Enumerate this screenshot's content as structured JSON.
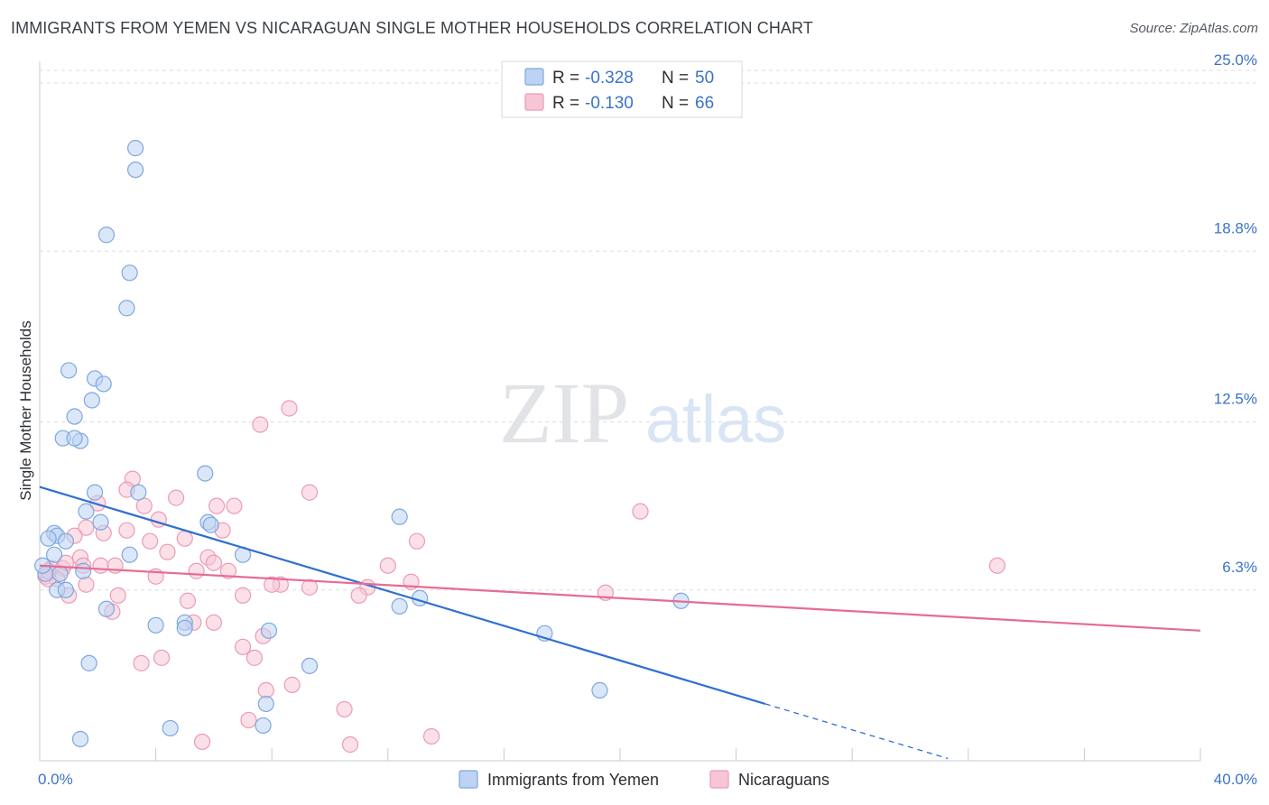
{
  "header": {
    "title": "IMMIGRANTS FROM YEMEN VS NICARAGUAN SINGLE MOTHER HOUSEHOLDS CORRELATION CHART",
    "source": "Source: ZipAtlas.com"
  },
  "watermark": {
    "zip": "ZIP",
    "atlas": "atlas"
  },
  "colors": {
    "blue_fill": "#bcd3f3",
    "blue_stroke": "#7fa7de",
    "blue_line": "#2f6fd1",
    "pink_fill": "#f7c6d6",
    "pink_stroke": "#eb9bb6",
    "pink_line": "#e66b95",
    "grid": "#d9dde3",
    "tick_text": "#3b73c9"
  },
  "legend": {
    "rows": [
      {
        "r_label": "R =",
        "r_value": "-0.328",
        "n_label": "N =",
        "n_value": "50"
      },
      {
        "r_label": "R =",
        "r_value": "-0.130",
        "n_label": "N =",
        "n_value": "66"
      }
    ]
  },
  "chart_data": {
    "type": "scatter",
    "title": "IMMIGRANTS FROM YEMEN VS NICARAGUAN SINGLE MOTHER HOUSEHOLDS CORRELATION CHART",
    "xlabel": "",
    "ylabel": "Single Mother Households",
    "xlim": [
      0,
      40
    ],
    "ylim": [
      0,
      25.8
    ],
    "x_tick_labels": [
      "0.0%",
      "40.0%"
    ],
    "y_ticks": [
      {
        "value": 6.3,
        "label": "6.3%"
      },
      {
        "value": 12.5,
        "label": "12.5%"
      },
      {
        "value": 18.8,
        "label": "18.8%"
      },
      {
        "value": 25.0,
        "label": "25.0%"
      }
    ],
    "series": [
      {
        "name": "Immigrants from Yemen",
        "color": "#bcd3f3",
        "r": -0.328,
        "n": 50,
        "trend": {
          "x0": 0,
          "y0": 10.1,
          "x1": 25,
          "y1": 2.1,
          "dash_to_x": 31.3
        },
        "points": [
          [
            3.3,
            22.6
          ],
          [
            3.3,
            21.8
          ],
          [
            2.3,
            19.4
          ],
          [
            3.1,
            18.0
          ],
          [
            3.0,
            16.7
          ],
          [
            1.0,
            14.4
          ],
          [
            1.9,
            14.1
          ],
          [
            2.2,
            13.9
          ],
          [
            1.8,
            13.3
          ],
          [
            1.2,
            12.7
          ],
          [
            0.8,
            11.9
          ],
          [
            1.4,
            11.8
          ],
          [
            1.2,
            11.9
          ],
          [
            5.7,
            10.6
          ],
          [
            1.9,
            9.9
          ],
          [
            3.4,
            9.9
          ],
          [
            1.6,
            9.2
          ],
          [
            2.1,
            8.8
          ],
          [
            5.8,
            8.8
          ],
          [
            5.9,
            8.7
          ],
          [
            12.4,
            9.0
          ],
          [
            0.5,
            8.4
          ],
          [
            0.6,
            8.3
          ],
          [
            0.3,
            8.2
          ],
          [
            0.9,
            8.1
          ],
          [
            0.5,
            7.6
          ],
          [
            3.1,
            7.6
          ],
          [
            7.0,
            7.6
          ],
          [
            0.2,
            6.9
          ],
          [
            0.7,
            6.9
          ],
          [
            1.5,
            7.0
          ],
          [
            0.6,
            6.3
          ],
          [
            0.9,
            6.3
          ],
          [
            13.1,
            6.0
          ],
          [
            12.4,
            5.7
          ],
          [
            22.1,
            5.9
          ],
          [
            2.3,
            5.6
          ],
          [
            4.0,
            5.0
          ],
          [
            5.0,
            5.1
          ],
          [
            5.0,
            4.9
          ],
          [
            7.9,
            4.8
          ],
          [
            17.4,
            4.7
          ],
          [
            1.7,
            3.6
          ],
          [
            9.3,
            3.5
          ],
          [
            19.3,
            2.6
          ],
          [
            7.8,
            2.1
          ],
          [
            4.5,
            1.2
          ],
          [
            7.7,
            1.3
          ],
          [
            1.4,
            0.8
          ],
          [
            0.1,
            7.2
          ]
        ]
      },
      {
        "name": "Nicaraguans",
        "color": "#f7c6d6",
        "r": -0.13,
        "n": 66,
        "trend": {
          "x0": 0,
          "y0": 7.2,
          "x1": 40,
          "y1": 4.8
        },
        "points": [
          [
            8.6,
            13.0
          ],
          [
            7.6,
            12.4
          ],
          [
            3.2,
            10.4
          ],
          [
            9.3,
            9.9
          ],
          [
            3.0,
            10.0
          ],
          [
            4.7,
            9.7
          ],
          [
            2.0,
            9.5
          ],
          [
            3.6,
            9.4
          ],
          [
            6.1,
            9.4
          ],
          [
            6.7,
            9.4
          ],
          [
            20.7,
            9.2
          ],
          [
            4.1,
            8.9
          ],
          [
            1.6,
            8.6
          ],
          [
            3.0,
            8.5
          ],
          [
            6.3,
            8.5
          ],
          [
            2.2,
            8.4
          ],
          [
            1.2,
            8.3
          ],
          [
            5.0,
            8.2
          ],
          [
            3.8,
            8.1
          ],
          [
            13.0,
            8.1
          ],
          [
            4.4,
            7.7
          ],
          [
            1.4,
            7.5
          ],
          [
            5.8,
            7.5
          ],
          [
            6.0,
            7.3
          ],
          [
            2.1,
            7.2
          ],
          [
            2.6,
            7.2
          ],
          [
            0.4,
            7.1
          ],
          [
            1.5,
            7.2
          ],
          [
            12.0,
            7.2
          ],
          [
            0.8,
            7.1
          ],
          [
            33.0,
            7.2
          ],
          [
            5.4,
            7.0
          ],
          [
            6.5,
            7.0
          ],
          [
            0.2,
            6.8
          ],
          [
            0.6,
            6.7
          ],
          [
            4.0,
            6.8
          ],
          [
            12.8,
            6.6
          ],
          [
            11.3,
            6.4
          ],
          [
            8.3,
            6.5
          ],
          [
            1.6,
            6.5
          ],
          [
            8.0,
            6.5
          ],
          [
            0.3,
            6.7
          ],
          [
            9.3,
            6.4
          ],
          [
            1.0,
            6.1
          ],
          [
            2.7,
            6.1
          ],
          [
            7.0,
            6.1
          ],
          [
            11.0,
            6.1
          ],
          [
            19.5,
            6.2
          ],
          [
            5.1,
            5.9
          ],
          [
            2.5,
            5.5
          ],
          [
            6.0,
            5.1
          ],
          [
            5.3,
            5.1
          ],
          [
            7.7,
            4.6
          ],
          [
            7.0,
            4.2
          ],
          [
            4.2,
            3.8
          ],
          [
            7.4,
            3.8
          ],
          [
            3.5,
            3.6
          ],
          [
            8.7,
            2.8
          ],
          [
            7.8,
            2.6
          ],
          [
            10.5,
            1.9
          ],
          [
            7.2,
            1.5
          ],
          [
            13.5,
            0.9
          ],
          [
            5.6,
            0.7
          ],
          [
            10.7,
            0.6
          ],
          [
            0.9,
            7.3
          ],
          [
            0.3,
            7.0
          ]
        ]
      }
    ]
  },
  "bottom_legend": {
    "items": [
      "Immigrants from Yemen",
      "Nicaraguans"
    ]
  }
}
